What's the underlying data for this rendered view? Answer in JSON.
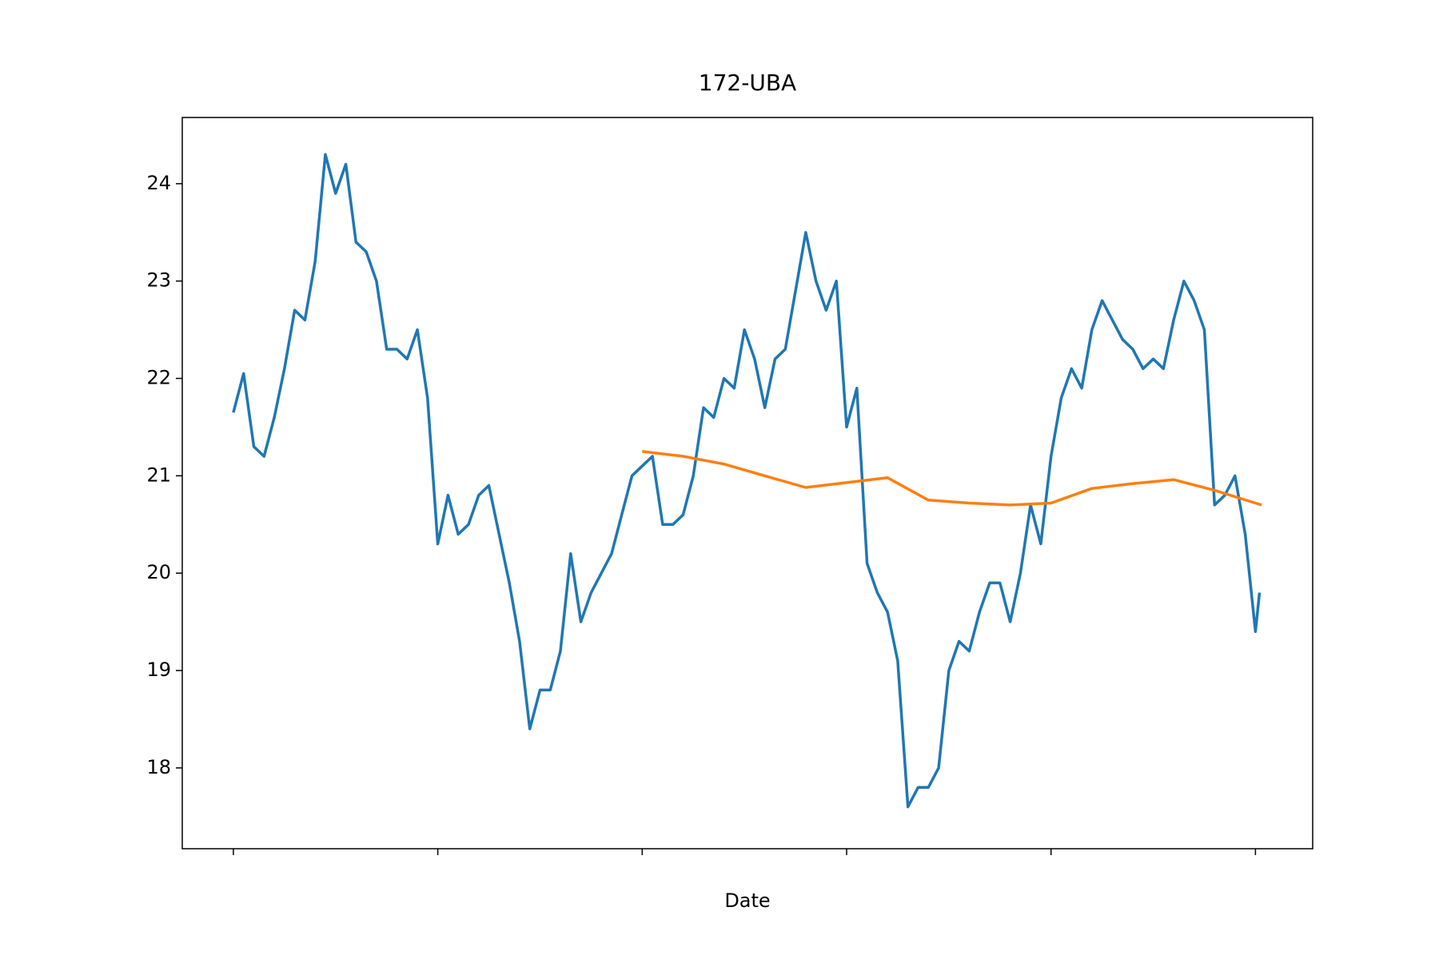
{
  "chart_data": {
    "type": "line",
    "title": "172-UBA",
    "x_label": "Date",
    "xlim": [
      -25,
      528
    ],
    "xticks": [
      0,
      100,
      200,
      300,
      400,
      500
    ],
    "ylim": [
      17.17,
      24.68
    ],
    "yticks": [
      18,
      19,
      20,
      21,
      22,
      23,
      24
    ],
    "series": [
      {
        "color": "#1f77b4",
        "x": [
          0,
          5,
          10,
          15,
          20,
          25,
          30,
          35,
          40,
          45,
          50,
          55,
          60,
          65,
          70,
          75,
          80,
          85,
          90,
          95,
          100,
          105,
          110,
          115,
          120,
          125,
          130,
          135,
          140,
          145,
          150,
          155,
          160,
          165,
          170,
          175,
          180,
          185,
          190,
          195,
          200,
          205,
          210,
          215,
          220,
          225,
          230,
          235,
          240,
          245,
          250,
          255,
          260,
          265,
          270,
          275,
          280,
          285,
          290,
          295,
          300,
          305,
          310,
          315,
          320,
          325,
          330,
          335,
          340,
          345,
          350,
          355,
          360,
          365,
          370,
          375,
          380,
          385,
          390,
          395,
          400,
          405,
          410,
          415,
          420,
          425,
          430,
          435,
          440,
          445,
          450,
          455,
          460,
          465,
          470,
          475,
          480,
          485,
          490,
          495,
          500,
          502
        ],
        "values": [
          21.65,
          22.05,
          21.3,
          21.2,
          21.6,
          22.1,
          22.7,
          22.6,
          23.2,
          24.3,
          23.9,
          24.2,
          23.4,
          23.3,
          23.0,
          22.3,
          22.3,
          22.2,
          22.5,
          21.8,
          20.3,
          20.8,
          20.4,
          20.5,
          20.8,
          20.9,
          20.4,
          19.9,
          19.3,
          18.4,
          18.8,
          18.8,
          19.2,
          20.2,
          19.5,
          19.8,
          20.0,
          20.2,
          20.6,
          21.0,
          21.1,
          21.2,
          20.5,
          20.5,
          20.6,
          21.0,
          21.7,
          21.6,
          22.0,
          21.9,
          22.5,
          22.2,
          21.7,
          22.2,
          22.3,
          22.9,
          23.5,
          23.0,
          22.7,
          23.0,
          21.5,
          21.9,
          20.1,
          19.8,
          19.6,
          19.1,
          17.6,
          17.8,
          17.8,
          18.0,
          19.0,
          19.3,
          19.2,
          19.6,
          19.9,
          19.9,
          19.5,
          20.0,
          20.7,
          20.3,
          21.2,
          21.8,
          22.1,
          21.9,
          22.5,
          22.8,
          22.6,
          22.4,
          22.3,
          22.1,
          22.2,
          22.1,
          22.6,
          23.0,
          22.8,
          22.5,
          20.7,
          20.8,
          21.0,
          20.4,
          19.4,
          19.8
        ]
      },
      {
        "color": "#ff7f0e",
        "x": [
          200,
          220,
          240,
          260,
          280,
          300,
          320,
          340,
          360,
          380,
          400,
          420,
          440,
          460,
          480,
          500,
          503
        ],
        "values": [
          21.25,
          21.2,
          21.12,
          21.0,
          20.88,
          20.93,
          20.98,
          20.75,
          20.72,
          20.7,
          20.72,
          20.87,
          20.92,
          20.96,
          20.85,
          20.72,
          20.7
        ]
      }
    ]
  }
}
